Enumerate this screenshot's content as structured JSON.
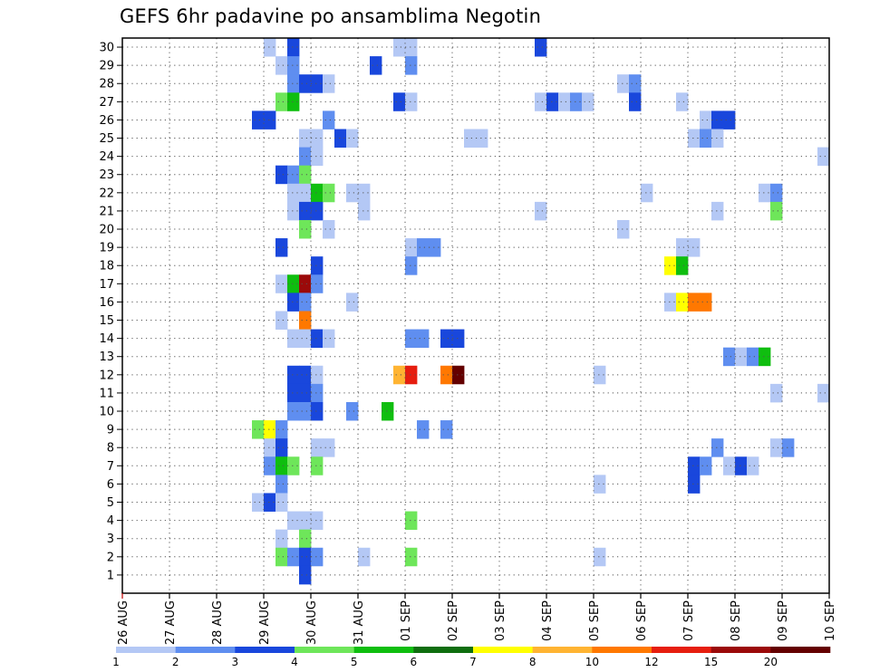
{
  "chart_data": {
    "type": "heatmap",
    "title": "GEFS 6hr padavine po ansamblima Negotin",
    "xlabel": "",
    "ylabel": "",
    "y_ticks": [
      1,
      2,
      3,
      4,
      5,
      6,
      7,
      8,
      9,
      10,
      11,
      12,
      13,
      14,
      15,
      16,
      17,
      18,
      19,
      20,
      21,
      22,
      23,
      24,
      25,
      26,
      27,
      28,
      29,
      30
    ],
    "ylim": [
      0,
      30
    ],
    "x_ticks": [
      "26 AUG",
      "27 AUG",
      "28 AUG",
      "29 AUG",
      "30 AUG",
      "31 AUG",
      "01 SEP",
      "02 SEP",
      "03 SEP",
      "04 SEP",
      "05 SEP",
      "06 SEP",
      "07 SEP",
      "08 SEP",
      "09 SEP",
      "10 SEP"
    ],
    "x_step": "6hr",
    "grid": true,
    "colorbar": {
      "labels": [
        "1",
        "2",
        "3",
        "4",
        "5",
        "6",
        "7",
        "8",
        "10",
        "12",
        "15",
        "20"
      ],
      "colors": [
        "#b4c8f5",
        "#5f8ef0",
        "#1947dc",
        "#6ee65a",
        "#0fbe0f",
        "#0f6e0f",
        "#ffff00",
        "#ffb432",
        "#ff7800",
        "#e61e0f",
        "#9b0a0a",
        "#640000"
      ]
    },
    "cells": [
      {
        "x": "29 AUG 00",
        "y": 30,
        "value": 1
      },
      {
        "x": "29 AUG 12",
        "y": 30,
        "value": 3
      },
      {
        "x": "31 AUG 18",
        "y": 30,
        "value": 1
      },
      {
        "x": "01 SEP 00",
        "y": 30,
        "value": 1
      },
      {
        "x": "03 SEP 18",
        "y": 30,
        "value": 3
      },
      {
        "x": "29 AUG 06",
        "y": 29,
        "value": 1
      },
      {
        "x": "29 AUG 12",
        "y": 29,
        "value": 2
      },
      {
        "x": "31 AUG 06",
        "y": 29,
        "value": 3
      },
      {
        "x": "01 SEP 00",
        "y": 29,
        "value": 2
      },
      {
        "x": "29 AUG 12",
        "y": 28,
        "value": 2
      },
      {
        "x": "29 AUG 18",
        "y": 28,
        "value": 3
      },
      {
        "x": "30 AUG 00",
        "y": 28,
        "value": 3
      },
      {
        "x": "30 AUG 06",
        "y": 28,
        "value": 1
      },
      {
        "x": "05 SEP 12",
        "y": 28,
        "value": 1
      },
      {
        "x": "05 SEP 18",
        "y": 28,
        "value": 2
      },
      {
        "x": "10 SEP 00",
        "y": 28,
        "value": 1
      },
      {
        "x": "29 AUG 06",
        "y": 27,
        "value": 4
      },
      {
        "x": "29 AUG 12",
        "y": 27,
        "value": 5
      },
      {
        "x": "31 AUG 18",
        "y": 27,
        "value": 3
      },
      {
        "x": "01 SEP 00",
        "y": 27,
        "value": 1
      },
      {
        "x": "03 SEP 18",
        "y": 27,
        "value": 1
      },
      {
        "x": "04 SEP 00",
        "y": 27,
        "value": 3
      },
      {
        "x": "04 SEP 06",
        "y": 27,
        "value": 1
      },
      {
        "x": "04 SEP 12",
        "y": 27,
        "value": 2
      },
      {
        "x": "04 SEP 18",
        "y": 27,
        "value": 1
      },
      {
        "x": "05 SEP 18",
        "y": 27,
        "value": 3
      },
      {
        "x": "06 SEP 18",
        "y": 27,
        "value": 1
      },
      {
        "x": "28 AUG 18",
        "y": 26,
        "value": 3
      },
      {
        "x": "29 AUG 00",
        "y": 26,
        "value": 3
      },
      {
        "x": "30 AUG 06",
        "y": 26,
        "value": 2
      },
      {
        "x": "07 SEP 06",
        "y": 26,
        "value": 1
      },
      {
        "x": "07 SEP 12",
        "y": 26,
        "value": 3
      },
      {
        "x": "07 SEP 18",
        "y": 26,
        "value": 3
      },
      {
        "x": "29 AUG 18",
        "y": 25,
        "value": 1
      },
      {
        "x": "30 AUG 00",
        "y": 25,
        "value": 1
      },
      {
        "x": "30 AUG 12",
        "y": 25,
        "value": 3
      },
      {
        "x": "30 AUG 18",
        "y": 25,
        "value": 1
      },
      {
        "x": "02 SEP 06",
        "y": 25,
        "value": 1
      },
      {
        "x": "02 SEP 12",
        "y": 25,
        "value": 1
      },
      {
        "x": "07 SEP 00",
        "y": 25,
        "value": 1
      },
      {
        "x": "07 SEP 06",
        "y": 25,
        "value": 2
      },
      {
        "x": "07 SEP 12",
        "y": 25,
        "value": 1
      },
      {
        "x": "29 AUG 18",
        "y": 24,
        "value": 2
      },
      {
        "x": "30 AUG 00",
        "y": 24,
        "value": 1
      },
      {
        "x": "09 SEP 18",
        "y": 24,
        "value": 1
      },
      {
        "x": "10 SEP 00",
        "y": 24,
        "value": 3
      },
      {
        "x": "29 AUG 06",
        "y": 23,
        "value": 3
      },
      {
        "x": "29 AUG 12",
        "y": 23,
        "value": 2
      },
      {
        "x": "29 AUG 18",
        "y": 23,
        "value": 4
      },
      {
        "x": "29 AUG 12",
        "y": 22,
        "value": 1
      },
      {
        "x": "29 AUG 18",
        "y": 22,
        "value": 1
      },
      {
        "x": "30 AUG 00",
        "y": 22,
        "value": 5
      },
      {
        "x": "30 AUG 06",
        "y": 22,
        "value": 4
      },
      {
        "x": "30 AUG 18",
        "y": 22,
        "value": 1
      },
      {
        "x": "31 AUG 00",
        "y": 22,
        "value": 1
      },
      {
        "x": "06 SEP 00",
        "y": 22,
        "value": 1
      },
      {
        "x": "08 SEP 12",
        "y": 22,
        "value": 1
      },
      {
        "x": "08 SEP 18",
        "y": 22,
        "value": 2
      },
      {
        "x": "29 AUG 12",
        "y": 21,
        "value": 1
      },
      {
        "x": "29 AUG 18",
        "y": 21,
        "value": 3
      },
      {
        "x": "30 AUG 00",
        "y": 21,
        "value": 3
      },
      {
        "x": "31 AUG 00",
        "y": 21,
        "value": 1
      },
      {
        "x": "03 SEP 18",
        "y": 21,
        "value": 1
      },
      {
        "x": "07 SEP 12",
        "y": 21,
        "value": 1
      },
      {
        "x": "08 SEP 18",
        "y": 21,
        "value": 4
      },
      {
        "x": "29 AUG 18",
        "y": 20,
        "value": 4
      },
      {
        "x": "30 AUG 06",
        "y": 20,
        "value": 1
      },
      {
        "x": "05 SEP 12",
        "y": 20,
        "value": 1
      },
      {
        "x": "29 AUG 06",
        "y": 19,
        "value": 3
      },
      {
        "x": "01 SEP 00",
        "y": 19,
        "value": 1
      },
      {
        "x": "01 SEP 06",
        "y": 19,
        "value": 2
      },
      {
        "x": "01 SEP 12",
        "y": 19,
        "value": 2
      },
      {
        "x": "06 SEP 18",
        "y": 19,
        "value": 1
      },
      {
        "x": "07 SEP 00",
        "y": 19,
        "value": 1
      },
      {
        "x": "30 AUG 00",
        "y": 18,
        "value": 3
      },
      {
        "x": "01 SEP 00",
        "y": 18,
        "value": 2
      },
      {
        "x": "06 SEP 12",
        "y": 18,
        "value": 7
      },
      {
        "x": "06 SEP 18",
        "y": 18,
        "value": 5
      },
      {
        "x": "29 AUG 06",
        "y": 17,
        "value": 1
      },
      {
        "x": "29 AUG 12",
        "y": 17,
        "value": 5
      },
      {
        "x": "29 AUG 18",
        "y": 17,
        "value": 15
      },
      {
        "x": "30 AUG 00",
        "y": 17,
        "value": 2
      },
      {
        "x": "29 AUG 12",
        "y": 16,
        "value": 3
      },
      {
        "x": "29 AUG 18",
        "y": 16,
        "value": 2
      },
      {
        "x": "30 AUG 18",
        "y": 16,
        "value": 1
      },
      {
        "x": "06 SEP 12",
        "y": 16,
        "value": 1
      },
      {
        "x": "06 SEP 18",
        "y": 16,
        "value": 7
      },
      {
        "x": "07 SEP 00",
        "y": 16,
        "value": 10
      },
      {
        "x": "07 SEP 06",
        "y": 16,
        "value": 10
      },
      {
        "x": "29 AUG 06",
        "y": 15,
        "value": 1
      },
      {
        "x": "29 AUG 18",
        "y": 15,
        "value": 10
      },
      {
        "x": "29 AUG 12",
        "y": 14,
        "value": 1
      },
      {
        "x": "29 AUG 18",
        "y": 14,
        "value": 1
      },
      {
        "x": "30 AUG 00",
        "y": 14,
        "value": 3
      },
      {
        "x": "30 AUG 06",
        "y": 14,
        "value": 1
      },
      {
        "x": "01 SEP 00",
        "y": 14,
        "value": 2
      },
      {
        "x": "01 SEP 06",
        "y": 14,
        "value": 2
      },
      {
        "x": "01 SEP 18",
        "y": 14,
        "value": 3
      },
      {
        "x": "02 SEP 00",
        "y": 14,
        "value": 3
      },
      {
        "x": "07 SEP 18",
        "y": 13,
        "value": 2
      },
      {
        "x": "08 SEP 00",
        "y": 13,
        "value": 1
      },
      {
        "x": "08 SEP 06",
        "y": 13,
        "value": 2
      },
      {
        "x": "08 SEP 12",
        "y": 13,
        "value": 5
      },
      {
        "x": "29 AUG 12",
        "y": 12,
        "value": 3
      },
      {
        "x": "29 AUG 18",
        "y": 12,
        "value": 3
      },
      {
        "x": "30 AUG 00",
        "y": 12,
        "value": 1
      },
      {
        "x": "31 AUG 18",
        "y": 12,
        "value": 8
      },
      {
        "x": "01 SEP 00",
        "y": 12,
        "value": 12
      },
      {
        "x": "01 SEP 18",
        "y": 12,
        "value": 10
      },
      {
        "x": "02 SEP 00",
        "y": 12,
        "value": 20
      },
      {
        "x": "05 SEP 00",
        "y": 12,
        "value": 1
      },
      {
        "x": "10 SEP 00",
        "y": 12,
        "value": 1
      },
      {
        "x": "29 AUG 12",
        "y": 11,
        "value": 3
      },
      {
        "x": "29 AUG 18",
        "y": 11,
        "value": 3
      },
      {
        "x": "30 AUG 00",
        "y": 11,
        "value": 2
      },
      {
        "x": "08 SEP 18",
        "y": 11,
        "value": 1
      },
      {
        "x": "09 SEP 18",
        "y": 11,
        "value": 1
      },
      {
        "x": "29 AUG 12",
        "y": 10,
        "value": 2
      },
      {
        "x": "29 AUG 18",
        "y": 10,
        "value": 2
      },
      {
        "x": "30 AUG 00",
        "y": 10,
        "value": 3
      },
      {
        "x": "30 AUG 18",
        "y": 10,
        "value": 2
      },
      {
        "x": "31 AUG 12",
        "y": 10,
        "value": 5
      },
      {
        "x": "28 AUG 18",
        "y": 9,
        "value": 4
      },
      {
        "x": "29 AUG 00",
        "y": 9,
        "value": 7
      },
      {
        "x": "29 AUG 06",
        "y": 9,
        "value": 2
      },
      {
        "x": "01 SEP 06",
        "y": 9,
        "value": 2
      },
      {
        "x": "01 SEP 18",
        "y": 9,
        "value": 2
      },
      {
        "x": "29 AUG 00",
        "y": 8,
        "value": 1
      },
      {
        "x": "29 AUG 06",
        "y": 8,
        "value": 3
      },
      {
        "x": "30 AUG 00",
        "y": 8,
        "value": 1
      },
      {
        "x": "30 AUG 06",
        "y": 8,
        "value": 1
      },
      {
        "x": "07 SEP 12",
        "y": 8,
        "value": 2
      },
      {
        "x": "08 SEP 18",
        "y": 8,
        "value": 1
      },
      {
        "x": "09 SEP 00",
        "y": 8,
        "value": 2
      },
      {
        "x": "29 AUG 00",
        "y": 7,
        "value": 2
      },
      {
        "x": "29 AUG 06",
        "y": 7,
        "value": 5
      },
      {
        "x": "29 AUG 12",
        "y": 7,
        "value": 4
      },
      {
        "x": "30 AUG 00",
        "y": 7,
        "value": 4
      },
      {
        "x": "07 SEP 00",
        "y": 7,
        "value": 3
      },
      {
        "x": "07 SEP 06",
        "y": 7,
        "value": 2
      },
      {
        "x": "07 SEP 18",
        "y": 7,
        "value": 1
      },
      {
        "x": "08 SEP 00",
        "y": 7,
        "value": 3
      },
      {
        "x": "08 SEP 06",
        "y": 7,
        "value": 1
      },
      {
        "x": "29 AUG 06",
        "y": 6,
        "value": 2
      },
      {
        "x": "05 SEP 00",
        "y": 6,
        "value": 1
      },
      {
        "x": "07 SEP 00",
        "y": 6,
        "value": 3
      },
      {
        "x": "28 AUG 18",
        "y": 5,
        "value": 1
      },
      {
        "x": "29 AUG 00",
        "y": 5,
        "value": 3
      },
      {
        "x": "29 AUG 06",
        "y": 5,
        "value": 1
      },
      {
        "x": "29 AUG 12",
        "y": 4,
        "value": 1
      },
      {
        "x": "29 AUG 18",
        "y": 4,
        "value": 1
      },
      {
        "x": "30 AUG 00",
        "y": 4,
        "value": 1
      },
      {
        "x": "01 SEP 00",
        "y": 4,
        "value": 4
      },
      {
        "x": "29 AUG 06",
        "y": 3,
        "value": 1
      },
      {
        "x": "29 AUG 18",
        "y": 3,
        "value": 4
      },
      {
        "x": "29 AUG 06",
        "y": 2,
        "value": 4
      },
      {
        "x": "29 AUG 12",
        "y": 2,
        "value": 2
      },
      {
        "x": "29 AUG 18",
        "y": 2,
        "value": 3
      },
      {
        "x": "30 AUG 00",
        "y": 2,
        "value": 2
      },
      {
        "x": "31 AUG 00",
        "y": 2,
        "value": 1
      },
      {
        "x": "01 SEP 00",
        "y": 2,
        "value": 4
      },
      {
        "x": "05 SEP 00",
        "y": 2,
        "value": 1
      },
      {
        "x": "29 AUG 18",
        "y": 1,
        "value": 3
      }
    ]
  }
}
